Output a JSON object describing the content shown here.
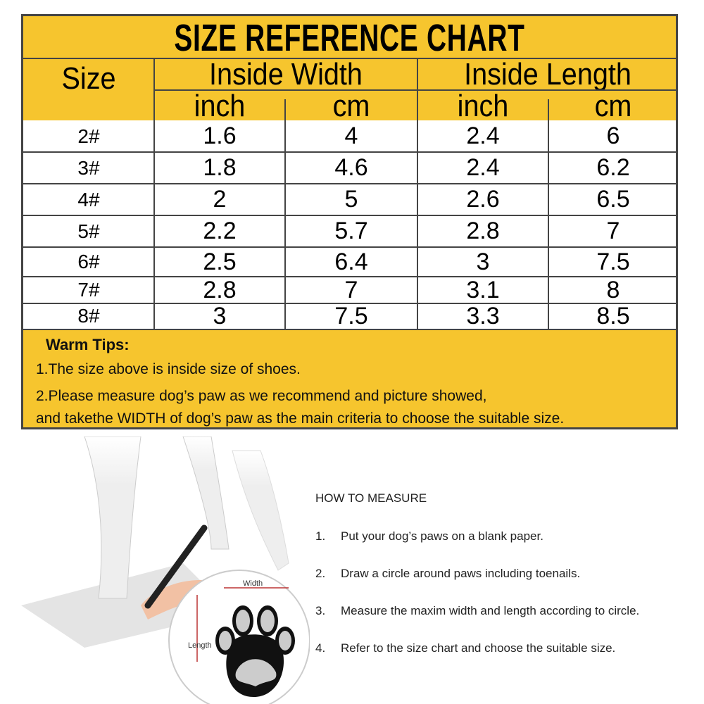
{
  "title": "SIZE REFERENCE CHART",
  "headers": {
    "size": "Size",
    "width": "Inside Width",
    "length": "Inside Length",
    "inch": "inch",
    "cm": "cm"
  },
  "rows": [
    [
      "2#",
      "1.6",
      "4",
      "2.4",
      "6"
    ],
    [
      "3#",
      "1.8",
      "4.6",
      "2.4",
      "6.2"
    ],
    [
      "4#",
      "2",
      "5",
      "2.6",
      "6.5"
    ],
    [
      "5#",
      "2.2",
      "5.7",
      "2.8",
      "7"
    ],
    [
      "6#",
      "2.5",
      "6.4",
      "3",
      "7.5"
    ],
    [
      "7#",
      "2.8",
      "7",
      "3.1",
      "8"
    ],
    [
      "8#",
      "3",
      "7.5",
      "3.3",
      "8.5"
    ]
  ],
  "tips": {
    "heading": "Warm Tips:",
    "line1": "1.The size above is inside size of shoes.",
    "line2": "2.Please measure dog’s paw as we recommend and picture showed,",
    "line3": "and takethe WIDTH of dog’s paw as the main criteria to choose the suitable size."
  },
  "illustration": {
    "width_label": "Width",
    "length_label": "Length"
  },
  "how_to": {
    "heading": "HOW TO MEASURE",
    "steps": [
      {
        "num": "1.",
        "text": "Put your dog’s paws on a blank paper."
      },
      {
        "num": "2.",
        "text": "Draw a circle around paws including toenails."
      },
      {
        "num": "3.",
        "text": "Measure the maxim width and length according to circle."
      },
      {
        "num": "4.",
        "text": "Refer to the size chart and choose the suitable size."
      }
    ]
  },
  "colors": {
    "header_yellow": "#F6C52E",
    "border": "#444444"
  }
}
